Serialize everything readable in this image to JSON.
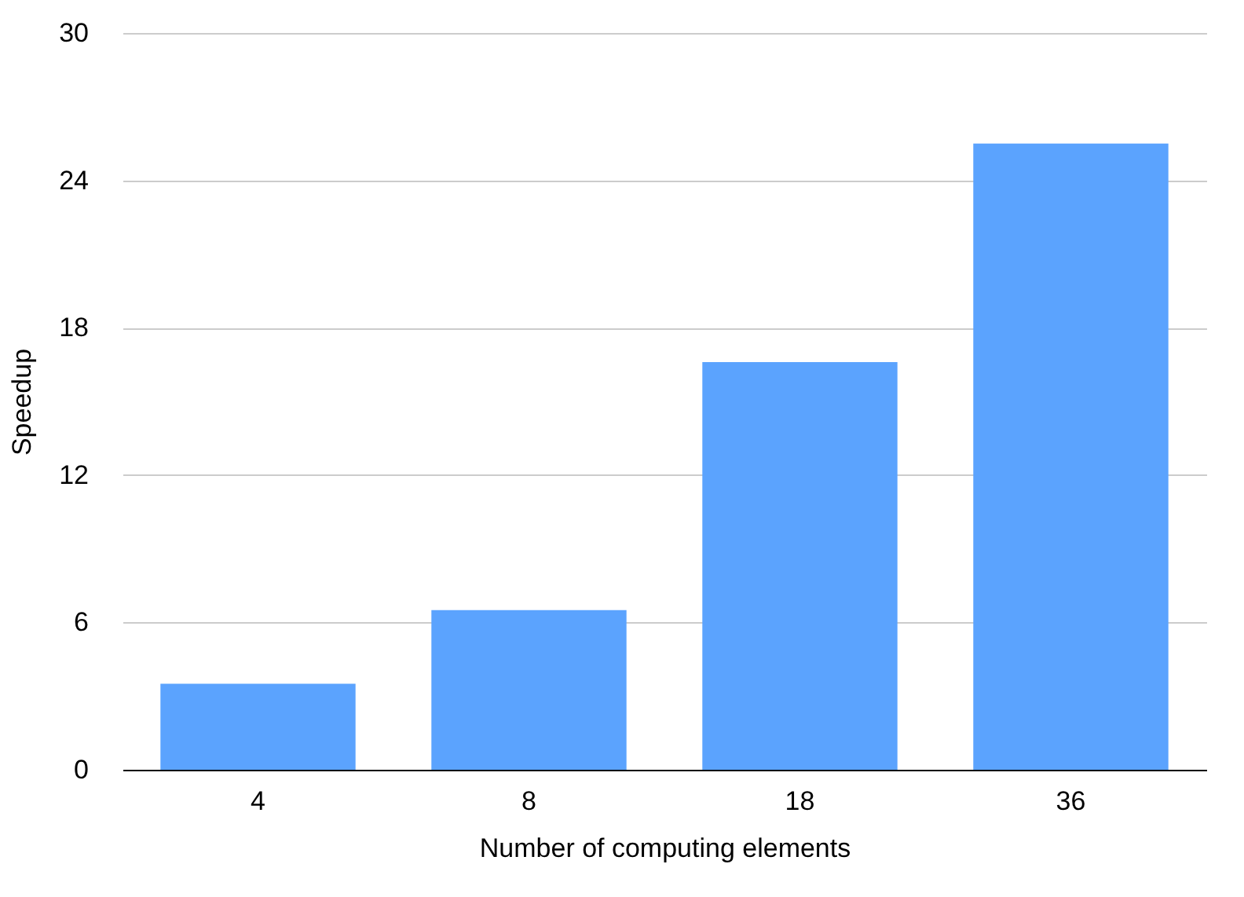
{
  "chart_data": {
    "type": "bar",
    "xlabel": "Number of computing elements",
    "ylabel": "Speedup",
    "categories": [
      "4",
      "8",
      "18",
      "36"
    ],
    "values": [
      3.5,
      6.5,
      16.6,
      25.5
    ],
    "color": "#5ba3fe",
    "ylim": [
      0,
      30
    ],
    "yticks": [
      0,
      6,
      12,
      18,
      24,
      30
    ],
    "grid": "y"
  }
}
